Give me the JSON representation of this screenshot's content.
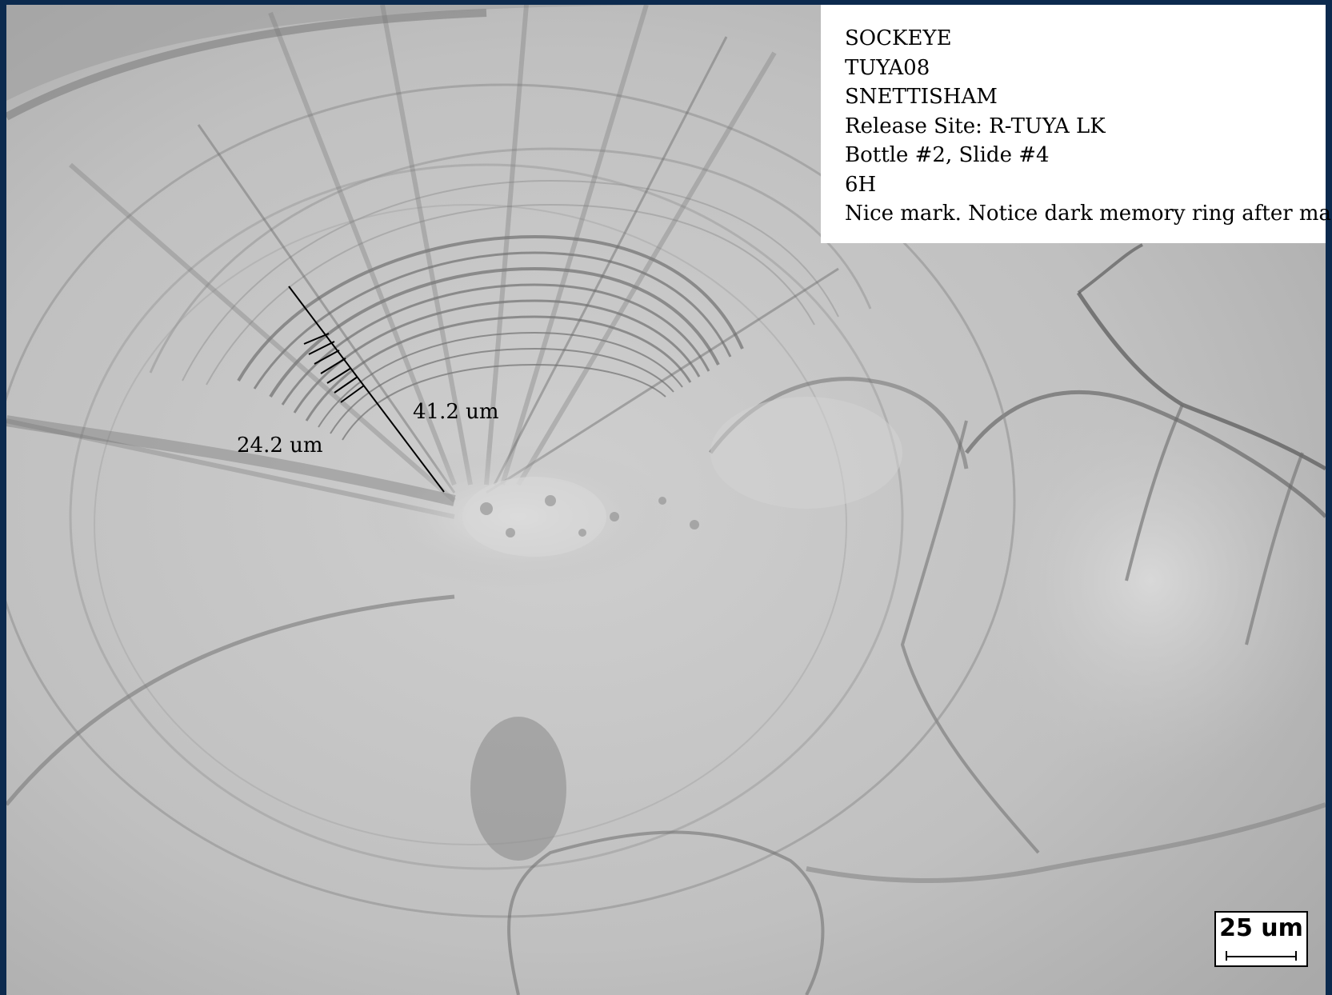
{
  "info_box": {
    "lines": [
      "SOCKEYE",
      "TUYA08",
      "SNETTISHAM",
      "Release Site: R-TUYA LK",
      "Bottle #2, Slide #4",
      "6H",
      "Nice mark. Notice dark memory ring after mark."
    ]
  },
  "measurements": {
    "outer_label": "41.2 um",
    "inner_label": "24.2 um"
  },
  "scale_bar": {
    "label": "25 um"
  },
  "colors": {
    "frame": "#0c2a4e",
    "background": "#bdbdbd"
  }
}
